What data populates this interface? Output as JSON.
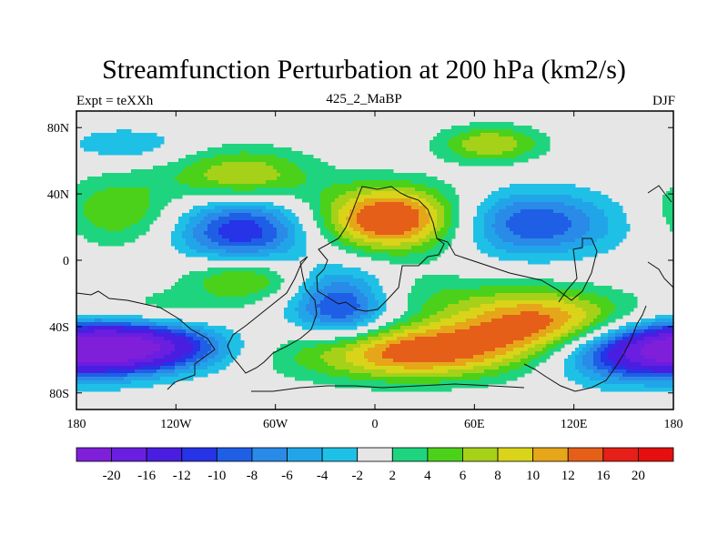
{
  "chart_data": {
    "type": "heatmap",
    "title": "Streamfunction Perturbation at 200 hPa (km2/s)",
    "left_string": "Expt = teXXh",
    "center_string": "425_2_MaBP",
    "right_string": "DJF",
    "x_ticks": [
      "180",
      "120W",
      "60W",
      "0",
      "60E",
      "120E",
      "180"
    ],
    "x_tick_values": [
      -180,
      -120,
      -60,
      0,
      60,
      120,
      180
    ],
    "y_ticks": [
      "80N",
      "40N",
      "0",
      "40S",
      "80S"
    ],
    "y_tick_values": [
      80,
      40,
      0,
      -40,
      -80
    ],
    "xlim": [
      -180,
      180
    ],
    "ylim": [
      -90,
      90
    ],
    "levels": [
      -20,
      -16,
      -12,
      -10,
      -8,
      -6,
      -4,
      -2,
      2,
      4,
      6,
      8,
      10,
      12,
      16,
      20
    ],
    "level_labels": [
      "-20",
      "-16",
      "-12",
      "-10",
      "-8",
      "-6",
      "-4",
      "-2",
      "2",
      "4",
      "6",
      "8",
      "10",
      "12",
      "16",
      "20"
    ],
    "colors": [
      "#7f1fd9",
      "#6a1ee0",
      "#4a1ee0",
      "#2633e6",
      "#1f5fe6",
      "#2a8ae8",
      "#22a5e8",
      "#1fc0e6",
      "#e6e6e6",
      "#1fd47f",
      "#4cd11a",
      "#a6d119",
      "#d9d419",
      "#e6a619",
      "#e65f19",
      "#e61f19",
      "#e60f0f"
    ],
    "features": [
      {
        "lon": -80,
        "lat": 18,
        "value": -12,
        "sx": 28,
        "sy": 16
      },
      {
        "lon": -20,
        "lat": -28,
        "value": -12,
        "sx": 22,
        "sy": 16
      },
      {
        "lon": -150,
        "lat": -52,
        "value": -20,
        "sx": 38,
        "sy": 10
      },
      {
        "lon": 160,
        "lat": -56,
        "value": -14,
        "sx": 40,
        "sy": 12
      },
      {
        "lon": 95,
        "lat": 22,
        "value": -10,
        "sx": 35,
        "sy": 14
      },
      {
        "lon": -155,
        "lat": 30,
        "value": 6,
        "sx": 25,
        "sy": 15
      },
      {
        "lon": -80,
        "lat": 50,
        "value": 9,
        "sx": 30,
        "sy": 12
      },
      {
        "lon": -80,
        "lat": -10,
        "value": 8,
        "sx": 25,
        "sy": 10
      },
      {
        "lon": 10,
        "lat": 25,
        "value": 16,
        "sx": 30,
        "sy": 14
      },
      {
        "lon": 20,
        "lat": -55,
        "value": 14,
        "sx": 50,
        "sy": 12
      },
      {
        "lon": 100,
        "lat": -38,
        "value": 13,
        "sx": 38,
        "sy": 14
      },
      {
        "lon": 70,
        "lat": 70,
        "value": 8,
        "sx": 22,
        "sy": 8
      },
      {
        "lon": -150,
        "lat": 70,
        "value": -4,
        "sx": 25,
        "sy": 7
      },
      {
        "lon": -130,
        "lat": -30,
        "value": 3,
        "sx": 30,
        "sy": 9
      },
      {
        "lon": 20,
        "lat": -20,
        "value": 3,
        "sx": 40,
        "sy": 10
      }
    ]
  }
}
